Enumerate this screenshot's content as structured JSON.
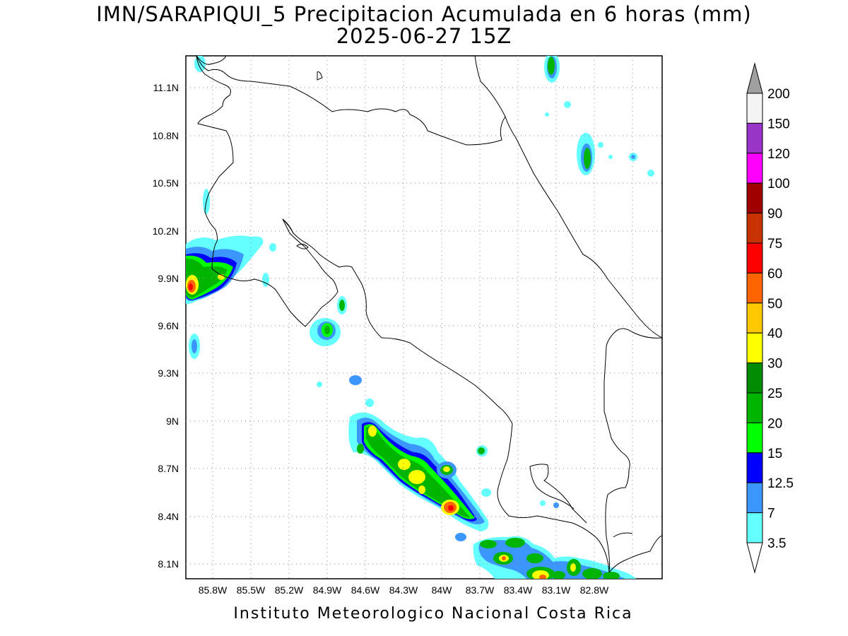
{
  "title_line1": "IMN/SARAPIQUI_5 Precipitacion Acumulada en 6 horas (mm)",
  "title_line2": "2025-06-27 15Z",
  "footer": "Instituto Meteorologico Nacional Costa Rica",
  "map": {
    "lat_labels": [
      "11.1N",
      "10.8N",
      "10.5N",
      "10.2N",
      "9.9N",
      "9.6N",
      "9.3N",
      "9N",
      "8.7N",
      "8.4N",
      "8.1N"
    ],
    "lon_labels": [
      "85.8W",
      "85.5W",
      "85.2W",
      "84.9W",
      "84.6W",
      "84.3W",
      "84W",
      "83.7W",
      "83.4W",
      "83.1W",
      "82.8W"
    ],
    "gridlines": "dotted"
  },
  "colorbar": {
    "labels": [
      "200",
      "150",
      "120",
      "100",
      "90",
      "75",
      "60",
      "50",
      "40",
      "30",
      "25",
      "20",
      "15",
      "12.5",
      "7",
      "3.5"
    ],
    "colors": [
      "#f4f4f4",
      "#9a34c8",
      "#ff00ff",
      "#a00000",
      "#c83200",
      "#ff0000",
      "#ff6400",
      "#ffc800",
      "#ffff00",
      "#008c00",
      "#00b400",
      "#00ff00",
      "#0000ff",
      "#3c96ff",
      "#64ffff"
    ],
    "overflow_color": "#a0a0a0"
  },
  "colors": {
    "c3_5": "#64ffff",
    "c7": "#3c96ff",
    "c12_5": "#0000ff",
    "c15": "#00ff00",
    "c20": "#00b400",
    "c25": "#008c00",
    "c30": "#ffff00",
    "c40": "#ffc800",
    "c50": "#ff6400",
    "c60": "#ff0000"
  }
}
